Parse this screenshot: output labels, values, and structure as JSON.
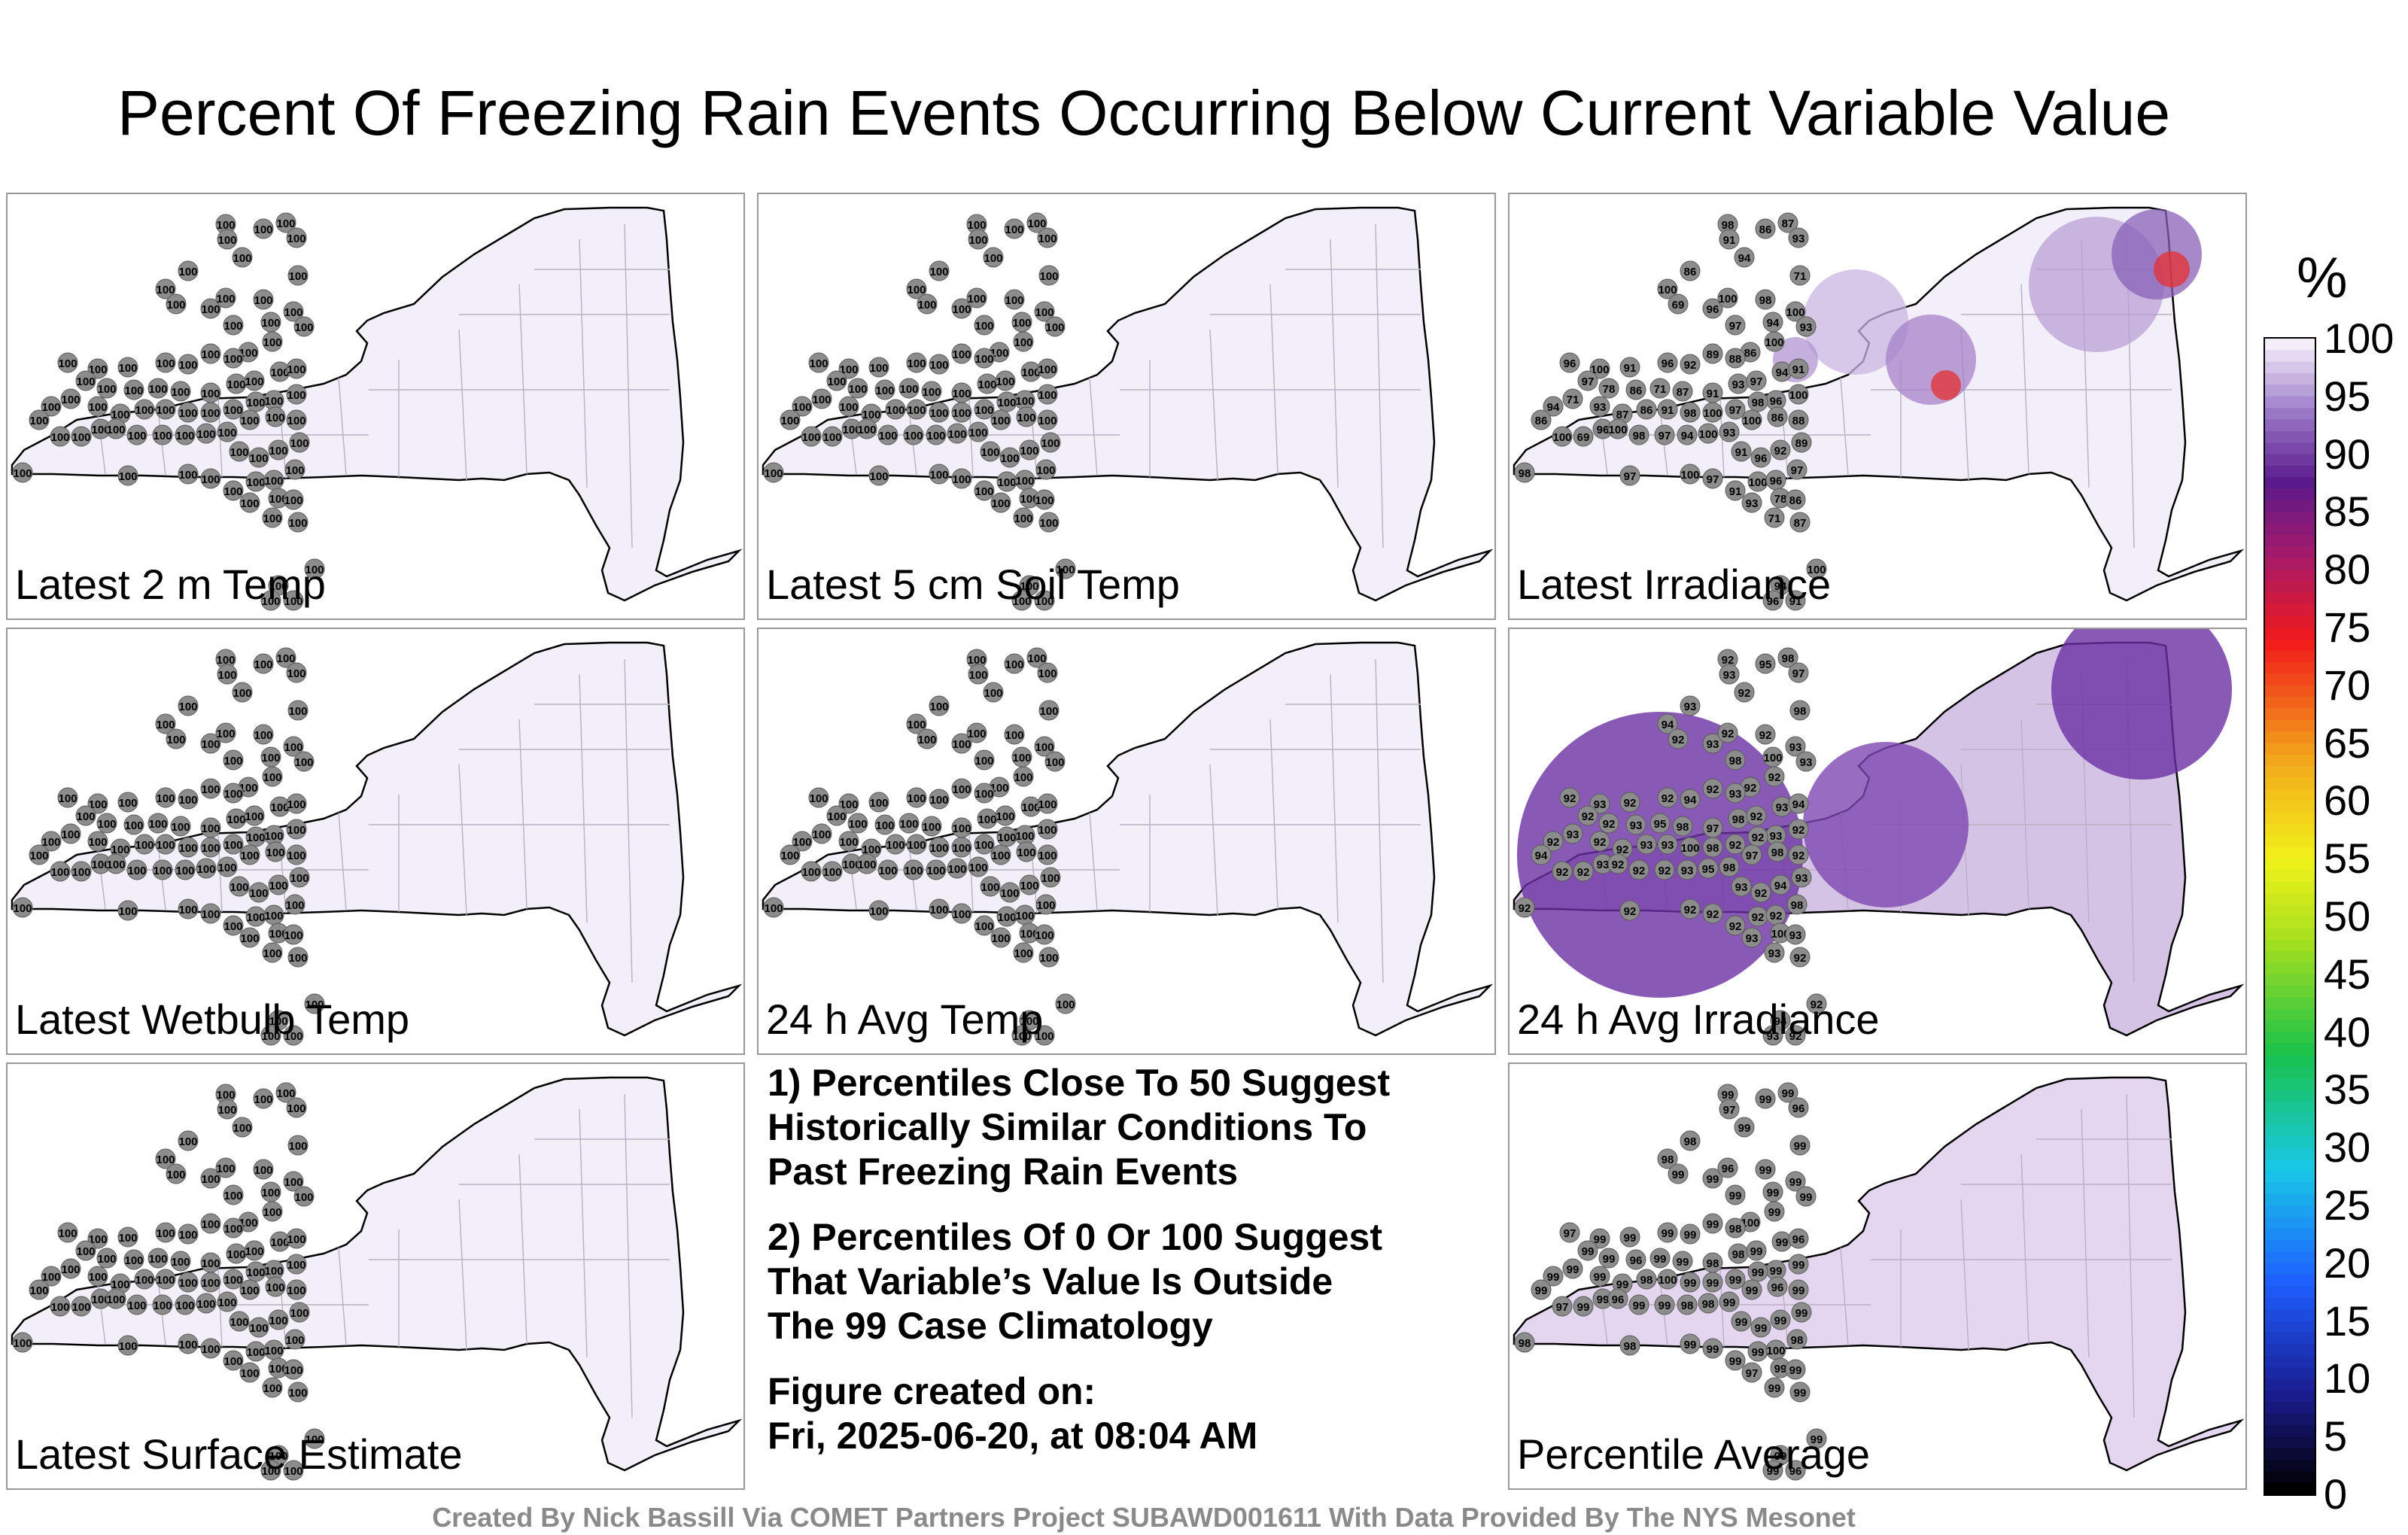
{
  "title": "Percent Of Freezing Rain Events Occurring Below Current Variable Value",
  "credit": "Created By Nick Bassill Via COMET Partners Project SUBAWD001611 With Data Provided By The NYS Mesonet",
  "notes": {
    "n1": "1) Percentiles Close To 50 Suggest\nHistorically Similar Conditions To\nPast Freezing Rain Events",
    "n2": "2) Percentiles Of 0 Or 100 Suggest\nThat Variable’s Value Is Outside\nThe 99 Case Climatology",
    "n3": "Figure created on:\nFri, 2025-06-20, at 08:04 AM"
  },
  "colorbar": {
    "unit": "%",
    "ticks": [
      "100",
      "95",
      "90",
      "85",
      "80",
      "75",
      "70",
      "65",
      "60",
      "55",
      "50",
      "45",
      "40",
      "35",
      "30",
      "25",
      "20",
      "15",
      "10",
      "5",
      "0"
    ]
  },
  "panels": [
    {
      "label": "Latest 2 m Temp",
      "all_values": 100
    },
    {
      "label": "Latest 5 cm Soil Temp",
      "all_values": 100
    },
    {
      "label": "Latest Irradiance"
    },
    {
      "label": "Latest Wetbulb Temp",
      "all_values": 100
    },
    {
      "label": "24 h Avg Temp",
      "all_values": 100
    },
    {
      "label": "24 h Avg Irradiance"
    },
    {
      "label": "Latest Surface Estimate",
      "all_values": 100
    },
    {
      "label": "Percentile Average"
    }
  ],
  "chart_data": {
    "type": "heatmap",
    "title": "Percent Of Freezing Rain Events Occurring Below Current Variable Value",
    "colorbar_range": [
      0,
      100
    ],
    "colorbar_unit": "%",
    "panels": [
      {
        "name": "Latest 2 m Temp",
        "station_values": "100 at all stations"
      },
      {
        "name": "Latest 5 cm Soil Temp",
        "station_values": "100 at all stations"
      },
      {
        "name": "Latest Irradiance",
        "visible_values": [
          98,
          91,
          86,
          87,
          93,
          71,
          94,
          86,
          100,
          69,
          96,
          100,
          98,
          97,
          94,
          100,
          93,
          100,
          86,
          88,
          89,
          92,
          96,
          91,
          100,
          96,
          97,
          78,
          86,
          71,
          87,
          91,
          93,
          97,
          94,
          91,
          100,
          96,
          98,
          97,
          100
        ]
      },
      {
        "name": "Latest Wetbulb Temp",
        "station_values": "100 at all stations"
      },
      {
        "name": "24 h Avg Temp",
        "station_values": "100 at all stations"
      },
      {
        "name": "24 h Avg Irradiance",
        "visible_values": [
          92,
          93,
          95,
          98,
          97,
          98,
          92,
          93,
          94,
          92,
          93,
          92,
          92,
          98,
          100,
          93,
          93,
          92,
          92,
          93,
          92,
          94,
          92,
          92,
          93,
          92,
          92
        ]
      },
      {
        "name": "Latest Surface Estimate",
        "station_values": "100 at all stations"
      },
      {
        "name": "Percentile Average",
        "visible_values": [
          99,
          97,
          99,
          99,
          96,
          99,
          99,
          98,
          98,
          99,
          99,
          96,
          99,
          99,
          99,
          99,
          99,
          99,
          100,
          98,
          99,
          99,
          99,
          99
        ]
      }
    ]
  }
}
